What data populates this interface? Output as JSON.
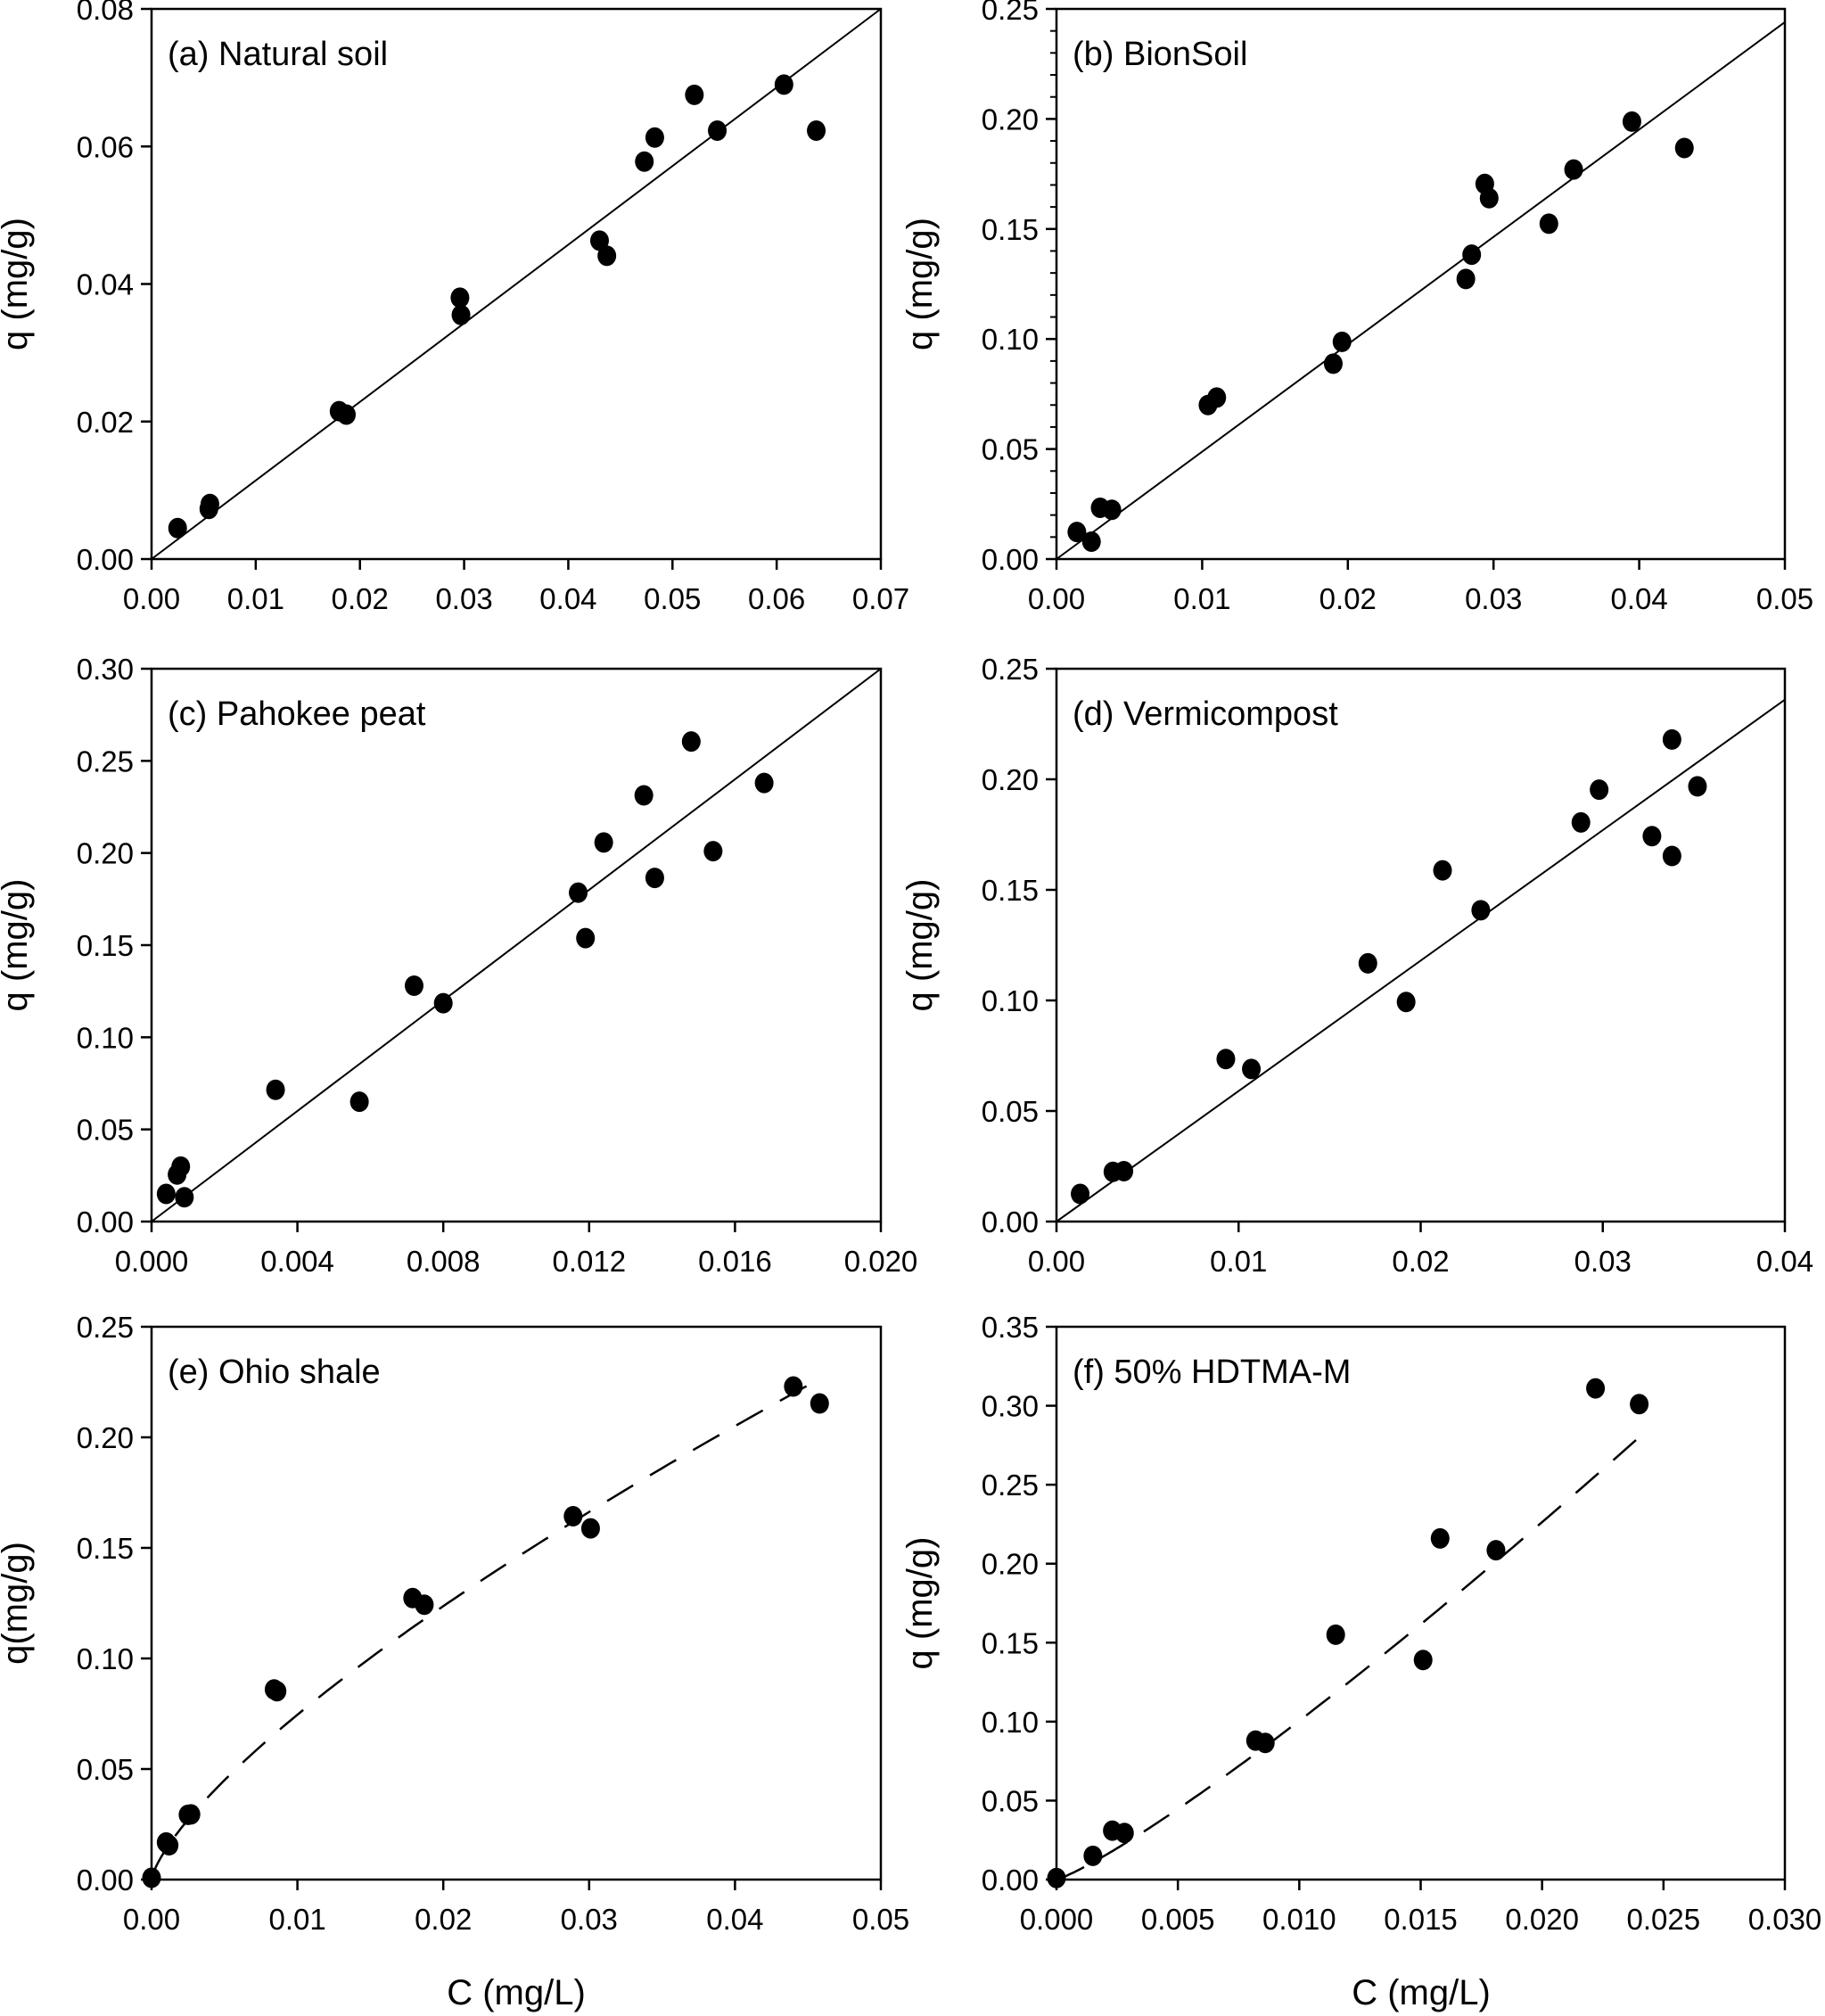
{
  "figure": {
    "shared_xlabel": "C (mg/L)"
  },
  "chart_data": [
    {
      "id": "a",
      "type": "scatter",
      "title": "(a) Natural soil",
      "xlabel": "",
      "ylabel": "q (mg/g)",
      "xlim": [
        0,
        0.07
      ],
      "ylim": [
        0,
        0.08
      ],
      "xticks": [
        "0.00",
        "0.01",
        "0.02",
        "0.03",
        "0.04",
        "0.05",
        "0.06",
        "0.07"
      ],
      "xtick_values": [
        0,
        0.01,
        0.02,
        0.03,
        0.04,
        0.05,
        0.06,
        0.07
      ],
      "yticks": [
        "0.00",
        "0.02",
        "0.04",
        "0.06",
        "0.08"
      ],
      "ytick_values": [
        0,
        0.02,
        0.04,
        0.06,
        0.08
      ],
      "y_minor_ticks": false,
      "grid": false,
      "points": [
        [
          0.0025,
          0.0045
        ],
        [
          0.0055,
          0.0073
        ],
        [
          0.0056,
          0.008
        ],
        [
          0.018,
          0.0215
        ],
        [
          0.0187,
          0.021
        ],
        [
          0.0296,
          0.038
        ],
        [
          0.0297,
          0.0355
        ],
        [
          0.043,
          0.0463
        ],
        [
          0.0437,
          0.0441
        ],
        [
          0.0473,
          0.0578
        ],
        [
          0.0483,
          0.0613
        ],
        [
          0.0521,
          0.0675
        ],
        [
          0.0543,
          0.0623
        ],
        [
          0.0607,
          0.069
        ],
        [
          0.0638,
          0.0623
        ]
      ],
      "fit": {
        "style": "solid",
        "model": "linear",
        "slope": 1.143,
        "intercept": 0
      }
    },
    {
      "id": "b",
      "type": "scatter",
      "title": "(b) BionSoil",
      "xlabel": "",
      "ylabel": "q (mg/g)",
      "xlim": [
        0,
        0.05
      ],
      "ylim": [
        0,
        0.25
      ],
      "xticks": [
        "0.00",
        "0.01",
        "0.02",
        "0.03",
        "0.04",
        "0.05"
      ],
      "xtick_values": [
        0,
        0.01,
        0.02,
        0.03,
        0.04,
        0.05
      ],
      "yticks": [
        "0.00",
        "0.05",
        "0.10",
        "0.15",
        "0.20",
        "0.25"
      ],
      "ytick_values": [
        0,
        0.05,
        0.1,
        0.15,
        0.2,
        0.25
      ],
      "y_minor_ticks": true,
      "grid": false,
      "points": [
        [
          0.0014,
          0.0123
        ],
        [
          0.0024,
          0.0079
        ],
        [
          0.003,
          0.0233
        ],
        [
          0.0038,
          0.0224
        ],
        [
          0.0104,
          0.07
        ],
        [
          0.011,
          0.0734
        ],
        [
          0.019,
          0.0888
        ],
        [
          0.0196,
          0.0987
        ],
        [
          0.0281,
          0.1273
        ],
        [
          0.0285,
          0.1383
        ],
        [
          0.0294,
          0.1705
        ],
        [
          0.0297,
          0.164
        ],
        [
          0.0338,
          0.1524
        ],
        [
          0.0355,
          0.177
        ],
        [
          0.0395,
          0.1988
        ],
        [
          0.0431,
          0.1868
        ]
      ],
      "fit": {
        "style": "solid",
        "model": "linear",
        "slope": 4.88,
        "intercept": 0
      }
    },
    {
      "id": "c",
      "type": "scatter",
      "title": "(c) Pahokee peat",
      "xlabel": "",
      "ylabel": "q (mg/g)",
      "xlim": [
        0,
        0.02
      ],
      "ylim": [
        0,
        0.3
      ],
      "xticks": [
        "0.000",
        "0.004",
        "0.008",
        "0.012",
        "0.016",
        "0.020"
      ],
      "xtick_values": [
        0,
        0.004,
        0.008,
        0.012,
        0.016,
        0.02
      ],
      "yticks": [
        "0.00",
        "0.05",
        "0.10",
        "0.15",
        "0.20",
        "0.25",
        "0.30"
      ],
      "ytick_values": [
        0,
        0.05,
        0.1,
        0.15,
        0.2,
        0.25,
        0.3
      ],
      "y_minor_ticks": false,
      "grid": false,
      "points": [
        [
          0.0004,
          0.015
        ],
        [
          0.0007,
          0.0255
        ],
        [
          0.0008,
          0.0298
        ],
        [
          0.0009,
          0.0132
        ],
        [
          0.0034,
          0.0715
        ],
        [
          0.0057,
          0.065
        ],
        [
          0.0072,
          0.128
        ],
        [
          0.008,
          0.1185
        ],
        [
          0.0117,
          0.1785
        ],
        [
          0.0119,
          0.1538
        ],
        [
          0.0124,
          0.2057
        ],
        [
          0.0135,
          0.2313
        ],
        [
          0.0138,
          0.1865
        ],
        [
          0.0148,
          0.2605
        ],
        [
          0.0154,
          0.201
        ],
        [
          0.0168,
          0.238
        ]
      ],
      "fit": {
        "style": "solid",
        "model": "linear",
        "slope": 15.0,
        "intercept": 0
      }
    },
    {
      "id": "d",
      "type": "scatter",
      "title": "(d) Vermicompost",
      "xlabel": "",
      "ylabel": "q (mg/g)",
      "xlim": [
        0,
        0.04
      ],
      "ylim": [
        0,
        0.25
      ],
      "xticks": [
        "0.00",
        "0.01",
        "0.02",
        "0.03",
        "0.04"
      ],
      "xtick_values": [
        0,
        0.01,
        0.02,
        0.03,
        0.04
      ],
      "yticks": [
        "0.00",
        "0.05",
        "0.10",
        "0.15",
        "0.20",
        "0.25"
      ],
      "ytick_values": [
        0,
        0.05,
        0.1,
        0.15,
        0.2,
        0.25
      ],
      "y_minor_ticks": false,
      "grid": false,
      "points": [
        [
          0.0013,
          0.0125
        ],
        [
          0.0031,
          0.0225
        ],
        [
          0.0037,
          0.0228
        ],
        [
          0.0093,
          0.0735
        ],
        [
          0.0107,
          0.069
        ],
        [
          0.0171,
          0.1168
        ],
        [
          0.0192,
          0.0993
        ],
        [
          0.0212,
          0.1588
        ],
        [
          0.0233,
          0.1408
        ],
        [
          0.0288,
          0.1805
        ],
        [
          0.0298,
          0.1953
        ],
        [
          0.0327,
          0.1743
        ],
        [
          0.0338,
          0.218
        ],
        [
          0.0338,
          0.1653
        ],
        [
          0.0352,
          0.1968
        ]
      ],
      "fit": {
        "style": "solid",
        "model": "linear",
        "slope": 5.9,
        "intercept": 0
      }
    },
    {
      "id": "e",
      "type": "scatter",
      "title": "(e) Ohio shale",
      "xlabel": "C (mg/L)",
      "ylabel": "q(mg/g)",
      "xlim": [
        0,
        0.05
      ],
      "ylim": [
        0,
        0.25
      ],
      "xticks": [
        "0.00",
        "0.01",
        "0.02",
        "0.03",
        "0.04",
        "0.05"
      ],
      "xtick_values": [
        0,
        0.01,
        0.02,
        0.03,
        0.04,
        0.05
      ],
      "yticks": [
        "0.00",
        "0.05",
        "0.10",
        "0.15",
        "0.20",
        "0.25"
      ],
      "ytick_values": [
        0,
        0.05,
        0.1,
        0.15,
        0.2,
        0.25
      ],
      "y_minor_ticks": false,
      "grid": false,
      "points": [
        [
          0.0,
          0.0008
        ],
        [
          0.001,
          0.0168
        ],
        [
          0.0012,
          0.0155
        ],
        [
          0.0025,
          0.0293
        ],
        [
          0.0027,
          0.0295
        ],
        [
          0.0084,
          0.086
        ],
        [
          0.0086,
          0.0852
        ],
        [
          0.0179,
          0.1273
        ],
        [
          0.0187,
          0.1243
        ],
        [
          0.0289,
          0.1643
        ],
        [
          0.0301,
          0.1588
        ],
        [
          0.044,
          0.223
        ],
        [
          0.0458,
          0.2153
        ]
      ],
      "fit": {
        "style": "dashed",
        "model": "freundlich",
        "K": 2.15,
        "n": 0.73,
        "x_range": [
          0,
          0.046
        ]
      }
    },
    {
      "id": "f",
      "type": "scatter",
      "title": "(f) 50% HDTMA-M",
      "xlabel": "C (mg/L)",
      "ylabel": "q (mg/g)",
      "xlim": [
        0,
        0.03
      ],
      "ylim": [
        0,
        0.35
      ],
      "xticks": [
        "0.000",
        "0.005",
        "0.010",
        "0.015",
        "0.020",
        "0.025",
        "0.030"
      ],
      "xtick_values": [
        0,
        0.005,
        0.01,
        0.015,
        0.02,
        0.025,
        0.03
      ],
      "yticks": [
        "0.00",
        "0.05",
        "0.10",
        "0.15",
        "0.20",
        "0.25",
        "0.30",
        "0.35"
      ],
      "ytick_values": [
        0,
        0.05,
        0.1,
        0.15,
        0.2,
        0.25,
        0.3,
        0.35
      ],
      "y_minor_ticks": false,
      "grid": false,
      "points": [
        [
          0.0,
          0.001
        ],
        [
          0.0015,
          0.015
        ],
        [
          0.0023,
          0.031
        ],
        [
          0.0028,
          0.0295
        ],
        [
          0.0082,
          0.088
        ],
        [
          0.0086,
          0.0865
        ],
        [
          0.0115,
          0.155
        ],
        [
          0.0151,
          0.139
        ],
        [
          0.0158,
          0.216
        ],
        [
          0.0181,
          0.2085
        ],
        [
          0.0222,
          0.311
        ],
        [
          0.024,
          0.301
        ]
      ],
      "fit": {
        "style": "dashed",
        "model": "freundlich",
        "K": 22.0,
        "n": 1.17,
        "x_range": [
          0,
          0.024
        ]
      }
    }
  ]
}
